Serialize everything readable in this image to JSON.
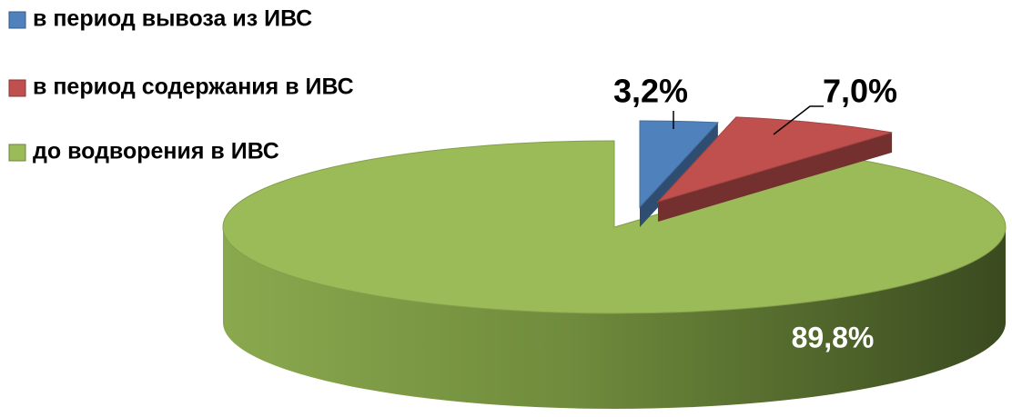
{
  "chart_data": {
    "type": "pie",
    "categories": [
      "в период вывоза из ИВС",
      "в период содержания в ИВС",
      "до водворения в ИВС"
    ],
    "values": [
      3.2,
      7.0,
      89.8
    ],
    "value_labels": [
      "3,2%",
      "7,0%",
      "89,8%"
    ],
    "colors": [
      "#4f81bd",
      "#c0504d",
      "#9bbb59"
    ],
    "legend": "top-left"
  }
}
